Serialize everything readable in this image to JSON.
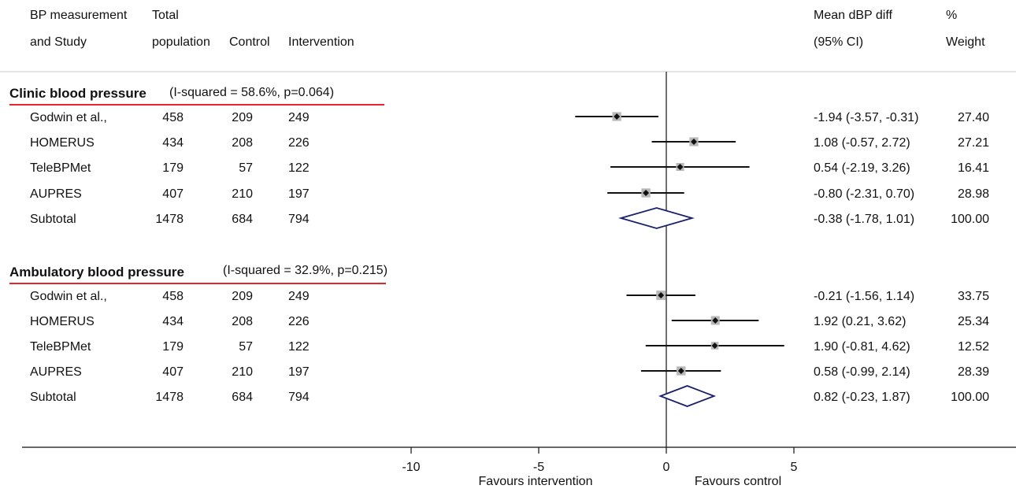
{
  "header": {
    "col_study_line1": "BP measurement",
    "col_study_line2": "and Study",
    "col_total_line1": "Total",
    "col_total_line2": "population",
    "col_control": "Control",
    "col_intervention": "Intervention",
    "col_effect_line1": "Mean dBP diff",
    "col_effect_line2": "(95% CI)",
    "col_weight_line1": "%",
    "col_weight_line2": "Weight"
  },
  "groups": [
    {
      "title": "Clinic blood pressure",
      "heterogeneity": "(I-squared = 58.6%, p=0.064)",
      "rows": [
        {
          "study": "Godwin et al.,",
          "total": "458",
          "control": "209",
          "intervention": "249",
          "ci_text": "-1.94 (-3.57, -0.31)",
          "weight": "27.40"
        },
        {
          "study": "HOMERUS",
          "total": "434",
          "control": "208",
          "intervention": "226",
          "ci_text": "1.08 (-0.57, 2.72)",
          "weight": "27.21"
        },
        {
          "study": "TeleBPMet",
          "total": "179",
          "control": "57",
          "intervention": "122",
          "ci_text": "0.54 (-2.19, 3.26)",
          "weight": "16.41"
        },
        {
          "study": "AUPRES",
          "total": "407",
          "control": "210",
          "intervention": "197",
          "ci_text": "-0.80 (-2.31, 0.70)",
          "weight": "28.98"
        }
      ],
      "subtotal": {
        "study": "Subtotal",
        "total": "1478",
        "control": "684",
        "intervention": "794",
        "ci_text": "-0.38 (-1.78, 1.01)",
        "weight": "100.00"
      }
    },
    {
      "title": "Ambulatory blood pressure",
      "heterogeneity": "(I-squared = 32.9%, p=0.215)",
      "rows": [
        {
          "study": "Godwin et al.,",
          "total": "458",
          "control": "209",
          "intervention": "249",
          "ci_text": "-0.21 (-1.56, 1.14)",
          "weight": "33.75"
        },
        {
          "study": "HOMERUS",
          "total": "434",
          "control": "208",
          "intervention": "226",
          "ci_text": "1.92 (0.21, 3.62)",
          "weight": "25.34"
        },
        {
          "study": "TeleBPMet",
          "total": "179",
          "control": "57",
          "intervention": "122",
          "ci_text": "1.90 (-0.81, 4.62)",
          "weight": "12.52"
        },
        {
          "study": "AUPRES",
          "total": "407",
          "control": "210",
          "intervention": "197",
          "ci_text": "0.58 (-0.99, 2.14)",
          "weight": "28.39"
        }
      ],
      "subtotal": {
        "study": "Subtotal",
        "total": "1478",
        "control": "684",
        "intervention": "794",
        "ci_text": "0.82 (-0.23, 1.87)",
        "weight": "100.00"
      }
    }
  ],
  "axis": {
    "ticks": [
      -10,
      -5,
      0,
      5
    ],
    "tick_labels": [
      "-10",
      "-5",
      "0",
      "5"
    ],
    "left_label": "Favours intervention",
    "right_label": "Favours control"
  },
  "colors": {
    "box": "#b8b8b8",
    "diamond": "#1a1f6b",
    "group_underline": "#e8242c",
    "line": "#111111"
  },
  "chart_data": {
    "type": "forest",
    "xlim": [
      -10,
      5
    ],
    "null_line": 0,
    "groups": [
      {
        "name": "Clinic blood pressure",
        "studies": [
          {
            "name": "Godwin et al.,",
            "est": -1.94,
            "lo": -3.57,
            "hi": -0.31,
            "weight": 27.4
          },
          {
            "name": "HOMERUS",
            "est": 1.08,
            "lo": -0.57,
            "hi": 2.72,
            "weight": 27.21
          },
          {
            "name": "TeleBPMet",
            "est": 0.54,
            "lo": -2.19,
            "hi": 3.26,
            "weight": 16.41
          },
          {
            "name": "AUPRES",
            "est": -0.8,
            "lo": -2.31,
            "hi": 0.7,
            "weight": 28.98
          }
        ],
        "subtotal": {
          "est": -0.38,
          "lo": -1.78,
          "hi": 1.01
        }
      },
      {
        "name": "Ambulatory blood pressure",
        "studies": [
          {
            "name": "Godwin et al.,",
            "est": -0.21,
            "lo": -1.56,
            "hi": 1.14,
            "weight": 33.75
          },
          {
            "name": "HOMERUS",
            "est": 1.92,
            "lo": 0.21,
            "hi": 3.62,
            "weight": 25.34
          },
          {
            "name": "TeleBPMet",
            "est": 1.9,
            "lo": -0.81,
            "hi": 4.62,
            "weight": 12.52
          },
          {
            "name": "AUPRES",
            "est": 0.58,
            "lo": -0.99,
            "hi": 2.14,
            "weight": 28.39
          }
        ],
        "subtotal": {
          "est": 0.82,
          "lo": -0.23,
          "hi": 1.87
        }
      }
    ]
  }
}
